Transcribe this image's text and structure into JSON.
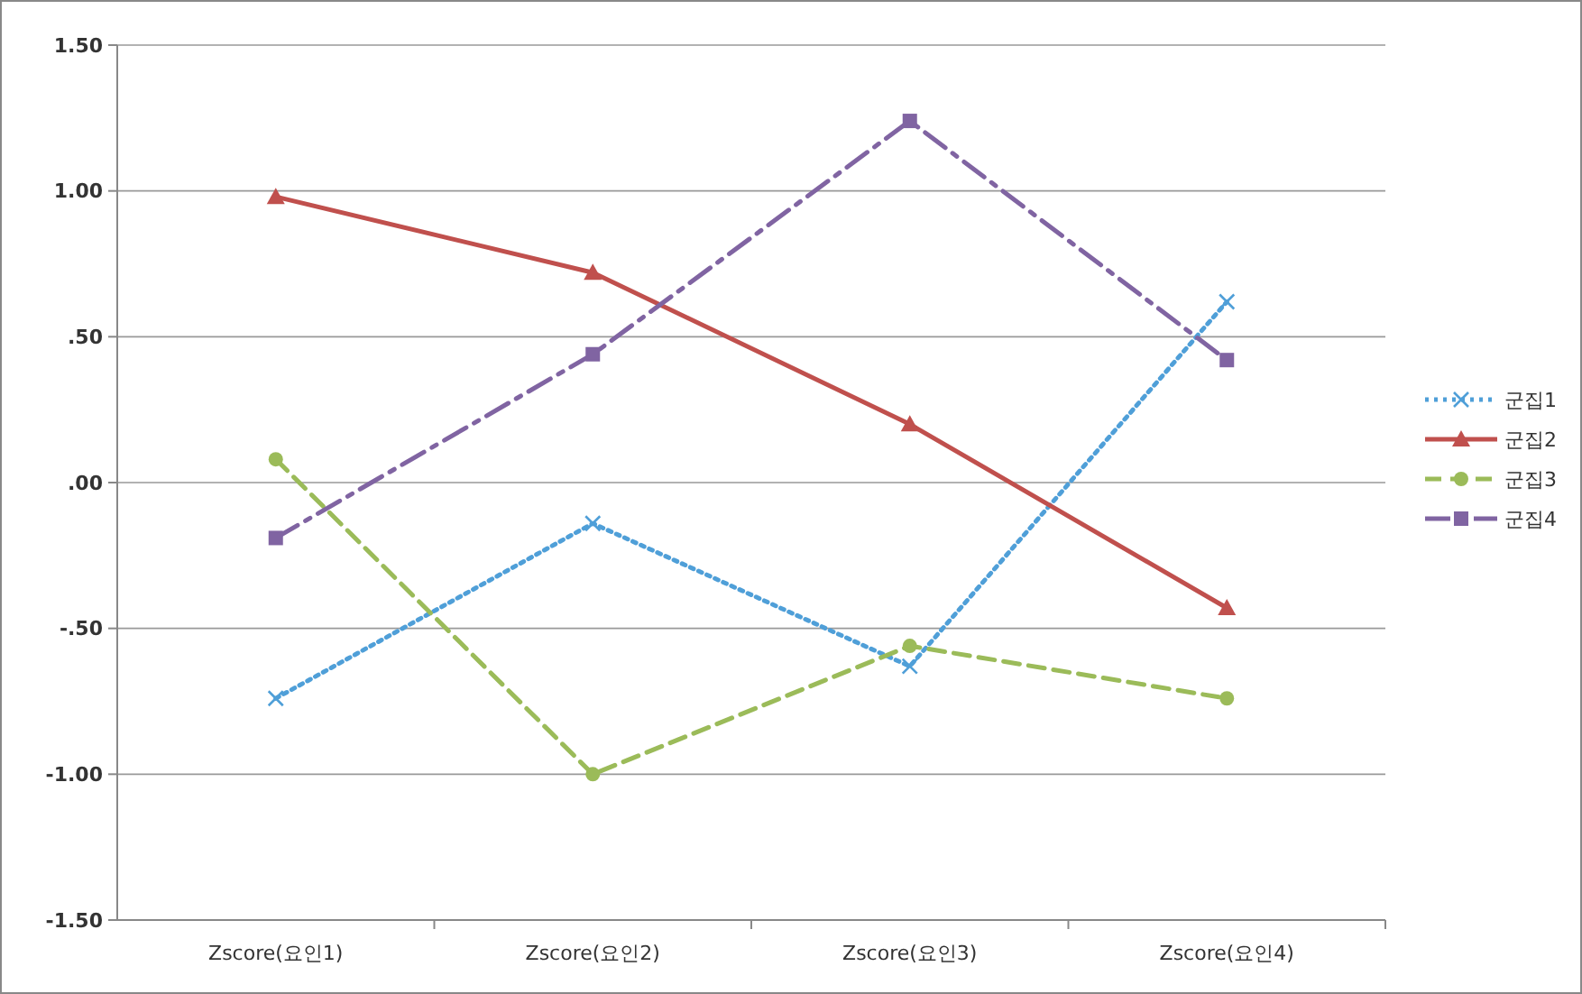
{
  "chart_data": {
    "type": "line",
    "categories": [
      "Zscore(요인1)",
      "Zscore(요인2)",
      "Zscore(요인3)",
      "Zscore(요인4)"
    ],
    "ylim": [
      -1.5,
      1.5
    ],
    "yticks": [
      {
        "value": -1.5,
        "label": "-1.50"
      },
      {
        "value": -1,
        "label": "-1.00"
      },
      {
        "value": -0.5,
        "label": "-.50"
      },
      {
        "value": 0,
        "label": ".00"
      },
      {
        "value": 0.5,
        "label": ".50"
      },
      {
        "value": 1,
        "label": "1.00"
      },
      {
        "value": 1.5,
        "label": "1.50"
      }
    ],
    "grid": "y",
    "legend": "right",
    "series": [
      {
        "name": "군집1",
        "color": "#4f9fd8",
        "values": [
          -0.74,
          -0.14,
          -0.63,
          0.62
        ],
        "marker": "cross",
        "line_style": "dotted"
      },
      {
        "name": "군집2",
        "color": "#c0504d",
        "values": [
          0.98,
          0.72,
          0.2,
          -0.43
        ],
        "marker": "triangle",
        "line_style": "solid"
      },
      {
        "name": "군집3",
        "color": "#9bbb59",
        "values": [
          0.08,
          -1.0,
          -0.56,
          -0.74
        ],
        "marker": "circle",
        "line_style": "dashed"
      },
      {
        "name": "군집4",
        "color": "#8064a2",
        "values": [
          -0.19,
          0.44,
          1.24,
          0.42
        ],
        "marker": "square",
        "line_style": "dashdot"
      }
    ]
  }
}
